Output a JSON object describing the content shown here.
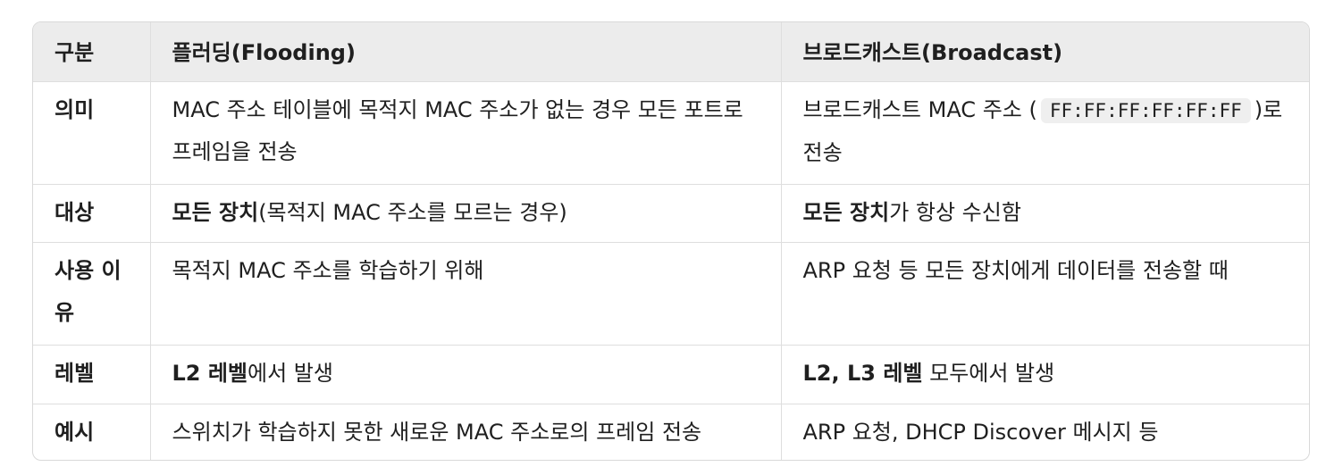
{
  "header": {
    "col1": "구분",
    "col2": "플러딩(Flooding)",
    "col3": "브로드캐스트(Broadcast)"
  },
  "rows": [
    {
      "label": "의미",
      "flooding": "MAC 주소 테이블에 목적지 MAC 주소가 없는 경우 모든 포트로 프레임을 전송",
      "broadcast_pre": "브로드캐스트 MAC 주소 (",
      "broadcast_code": "FF:FF:FF:FF:FF:FF",
      "broadcast_post": ")로 전송"
    },
    {
      "label": "대상",
      "flooding_bold": "모든 장치",
      "flooding_rest": "(목적지 MAC 주소를 모르는 경우)",
      "broadcast_bold": "모든 장치",
      "broadcast_rest": "가 항상 수신함"
    },
    {
      "label": "사용 이유",
      "flooding": "목적지 MAC 주소를 학습하기 위해",
      "broadcast": "ARP 요청 등 모든 장치에게 데이터를 전송할 때"
    },
    {
      "label": "레벨",
      "flooding_bold": "L2 레벨",
      "flooding_rest": "에서 발생",
      "broadcast_bold": "L2, L3 레벨",
      "broadcast_rest": " 모두에서 발생"
    },
    {
      "label": "예시",
      "flooding": "스위치가 학습하지 못한 새로운 MAC 주소로의 프레임 전송",
      "broadcast": "ARP 요청, DHCP Discover 메시지 등"
    }
  ]
}
